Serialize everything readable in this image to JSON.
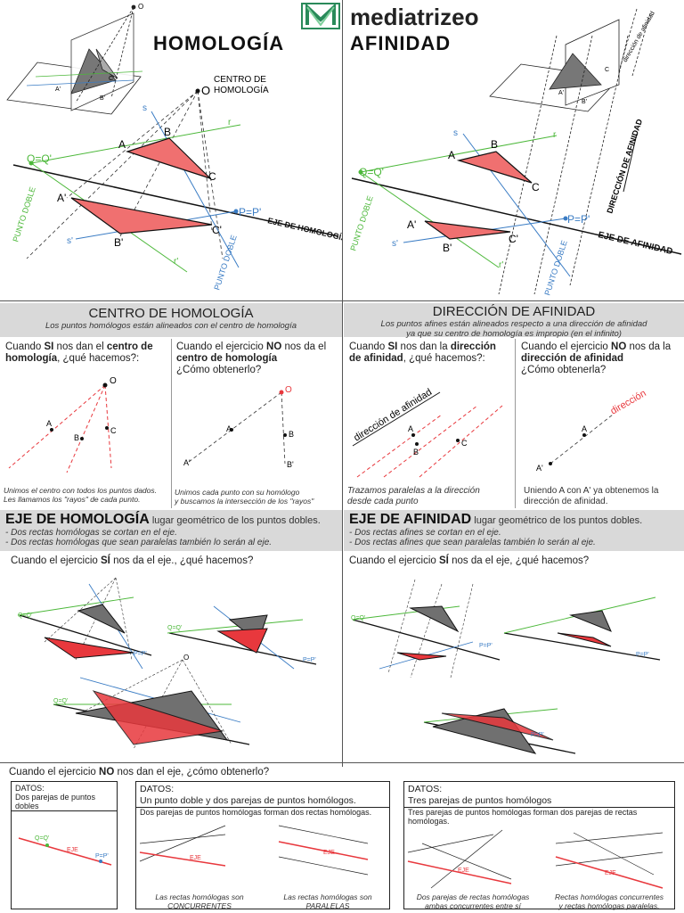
{
  "brand": {
    "name": "mediatrizeo",
    "logo_icon": "mediatrizeo-logo-icon"
  },
  "titles": {
    "left": "HOMOLOGÍA",
    "right": "AFINIDAD"
  },
  "top_left": {
    "centro_label_1": "CENTRO DE",
    "centro_label_2": "HOMOLOGÍA",
    "o": "O",
    "a": "A",
    "b": "B",
    "c": "C",
    "a2": "A'",
    "b2": "B'",
    "c2": "C'",
    "qq": "Q=Q'",
    "pp": "P=P'",
    "r": "r",
    "r2": "r'",
    "s": "s",
    "s2": "s'",
    "punto_doble": "PUNTO DOBLE",
    "eje": "EJE DE HOMOLOGÍA"
  },
  "top_right": {
    "direccion_small": "dirección de afinidad",
    "direccion": "DIRECCIÓN DE AFINIDAD",
    "a": "A",
    "b": "B",
    "c": "C",
    "a2": "A'",
    "b2": "B'",
    "c2": "C'",
    "qq": "Q=Q'",
    "pp": "P=P'",
    "r": "r",
    "r2": "r'",
    "s": "s",
    "s2": "s'",
    "punto_doble": "PUNTO DOBLE",
    "eje": "EJE DE AFINIDAD"
  },
  "centro": {
    "title": "CENTRO DE HOMOLOGÍA",
    "subtitle": "Los puntos homólogos están  alineados con el centro de homología",
    "q1_pre": "Cuando ",
    "q1_si": "SI",
    "q1_mid": " nos dan el ",
    "q1_b": "centro de homología",
    "q1_post": ", ¿qué hacemos?:",
    "q2_pre": "Cuando el ejercicio ",
    "q2_no": "NO",
    "q2_mid": " nos da el ",
    "q2_b": "centro de homología",
    "q2_post": "¿Cómo obtenerlo?",
    "cap1_1": "Unimos el centro con todos los puntos dados.",
    "cap1_2": "Les llamamos los \"rayos\" de cada punto.",
    "cap2_1": "Unimos cada punto con su homólogo",
    "cap2_2": "y buscamos la intersección de los \"rayos\"",
    "o": "O",
    "a": "A",
    "b": "B",
    "c": "C",
    "a2": "A'",
    "b2": "B'"
  },
  "direccion": {
    "title": "DIRECCIÓN DE AFINIDAD",
    "subtitle_1": "Los puntos afines están alineados respecto a una dirección de afinidad",
    "subtitle_2": "ya que su centro de homología es impropio (en el infinito)",
    "q1_pre": "Cuando ",
    "q1_si": "SI",
    "q1_mid": " nos dan la ",
    "q1_b": "dirección de afinidad",
    "q1_post": ", ¿qué hacemos?:",
    "q2_pre": "Cuando el ejercicio ",
    "q2_no": "NO",
    "q2_mid": " nos da la ",
    "q2_b": "dirección de afinidad",
    "q2_post": "¿Cómo obtenerla?",
    "dir_label": "dirección de afinidad",
    "dir_label_red": "dirección",
    "cap1_1": "Trazamos paralelas a la dirección",
    "cap1_2": "desde cada punto",
    "cap2_1": "Uniendo A con A' ya obtenemos la",
    "cap2_2": "dirección de afinidad.",
    "a": "A",
    "b": "B",
    "c": "C",
    "a2": "A'"
  },
  "eje_h": {
    "title": "EJE DE HOMOLOGÍA",
    "sub": " lugar geométrico de los puntos dobles.",
    "b1": "- Dos rectas homólogas se cortan en el eje.",
    "b2": "- Dos rectas homólogas que sean paralelas también lo serán al eje.",
    "q_pre": "Cuando el ejercicio ",
    "q_si": "SÍ",
    "q_post": " nos da el eje., ¿qué hacemos?"
  },
  "eje_a": {
    "title": "EJE DE AFINIDAD",
    "sub": " lugar geométrico de los puntos dobles.",
    "b1": "- Dos rectas afines se cortan en el eje.",
    "b2": "- Dos rectas afines que sean paralelas también lo serán al eje.",
    "q_pre": "Cuando el ejercicio ",
    "q_si": "SÍ",
    "q_post": " nos da el eje, ¿qué hacemos?"
  },
  "no_eje": {
    "q_pre": "Cuando el ejercicio ",
    "q_no": "NO",
    "q_post": " nos dan el eje, ¿cómo obtenerlo?",
    "box1_t1": "DATOS:",
    "box1_t2": "Dos parejas de puntos dobles",
    "box2_t1": "DATOS:",
    "box2_t2": "Un punto doble  y dos parejas de puntos homólogos.",
    "box2_t3": "Dos parejas de puntos homólogas forman dos rectas homólogas.",
    "box2_c1a": "Las rectas homólogas son",
    "box2_c1b": "CONCURRENTES",
    "box2_c2a": "Las rectas homólogas son",
    "box2_c2b": "PARALELAS",
    "box3_t1": "DATOS:",
    "box3_t2": "Tres parejas de puntos homólogos",
    "box3_t3": "Tres parejas de puntos homólogas forman dos parejas de rectas homólogas.",
    "box3_c1a": "Dos parejas de rectas homólogas",
    "box3_c1b": "ambas concurrentes entre sí",
    "box3_c2a": "Rectas homólogas concurrentes",
    "box3_c2b": "y rectas homólogas paralelas.",
    "qq": "Q=Q'",
    "pp": "P=P'",
    "eje": "EJE"
  },
  "colors": {
    "red": "#e8383d",
    "red_fill": "#f07070",
    "green": "#4cb83a",
    "blue": "#3a7cc4",
    "gray_fill": "#707070",
    "header_bg": "#d9d9d9"
  }
}
